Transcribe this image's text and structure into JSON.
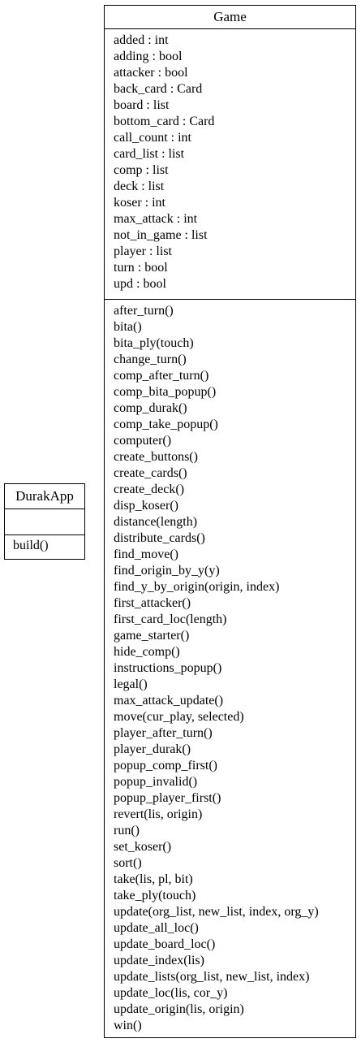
{
  "classes": {
    "game": {
      "name": "Game",
      "attributes": [
        "added : int",
        "adding : bool",
        "attacker : bool",
        "back_card : Card",
        "board : list",
        "bottom_card : Card",
        "call_count : int",
        "card_list : list",
        "comp : list",
        "deck : list",
        "koser : int",
        "max_attack : int",
        "not_in_game : list",
        "player : list",
        "turn : bool",
        "upd : bool"
      ],
      "methods": [
        "after_turn()",
        "bita()",
        "bita_ply(touch)",
        "change_turn()",
        "comp_after_turn()",
        "comp_bita_popup()",
        "comp_durak()",
        "comp_take_popup()",
        "computer()",
        "create_buttons()",
        "create_cards()",
        "create_deck()",
        "disp_koser()",
        "distance(length)",
        "distribute_cards()",
        "find_move()",
        "find_origin_by_y(y)",
        "find_y_by_origin(origin, index)",
        "first_attacker()",
        "first_card_loc(length)",
        "game_starter()",
        "hide_comp()",
        "instructions_popup()",
        "legal()",
        "max_attack_update()",
        "move(cur_play, selected)",
        "player_after_turn()",
        "player_durak()",
        "popup_comp_first()",
        "popup_invalid()",
        "popup_player_first()",
        "revert(lis, origin)",
        "run()",
        "set_koser()",
        "sort()",
        "take(lis, pl, bit)",
        "take_ply(touch)",
        "update(org_list, new_list, index, org_y)",
        "update_all_loc()",
        "update_board_loc()",
        "update_index(lis)",
        "update_lists(org_list, new_list, index)",
        "update_loc(lis, cor_y)",
        "update_origin(lis, origin)",
        "win()"
      ]
    },
    "durak_app": {
      "name": "DurakApp",
      "attributes": [],
      "methods": [
        "build()"
      ]
    }
  }
}
